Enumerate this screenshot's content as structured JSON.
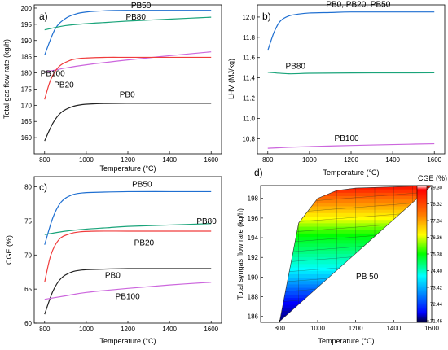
{
  "chart_data": [
    {
      "panel": "a)",
      "type": "line",
      "xlabel": "Temperature (°C)",
      "ylabel": "Total gas flow rate (kg/h)",
      "xlim": [
        750,
        1650
      ],
      "ylim": [
        155,
        201
      ],
      "xticks": [
        800,
        1000,
        1200,
        1400,
        1600
      ],
      "yticks": [
        160,
        165,
        170,
        175,
        180,
        185,
        190,
        195,
        200
      ],
      "series": [
        {
          "name": "PB50",
          "color": "#1f6fd1",
          "x": [
            800,
            850,
            900,
            950,
            1000,
            1100,
            1200,
            1400,
            1600
          ],
          "y": [
            185.5,
            193.5,
            196.8,
            198.2,
            198.8,
            199.2,
            199.3,
            199.3,
            199.3
          ]
        },
        {
          "name": "PB80",
          "color": "#1aa47a",
          "x": [
            800,
            900,
            1000,
            1100,
            1200,
            1300,
            1400,
            1500,
            1600
          ],
          "y": [
            193.3,
            194.6,
            195.2,
            195.6,
            196.0,
            196.3,
            196.6,
            196.9,
            197.2
          ]
        },
        {
          "name": "PB100",
          "color": "#cc66dd",
          "x": [
            800,
            900,
            1000,
            1200,
            1400,
            1600
          ],
          "y": [
            180.2,
            181.5,
            182.5,
            184.0,
            185.3,
            186.5
          ]
        },
        {
          "name": "PB20",
          "color": "#f03c3c",
          "x": [
            800,
            830,
            870,
            920,
            960,
            1000,
            1100,
            1200,
            1400,
            1600
          ],
          "y": [
            171.8,
            178.0,
            182.0,
            183.8,
            184.4,
            184.6,
            184.8,
            184.8,
            184.8,
            184.8
          ]
        },
        {
          "name": "PB0",
          "color": "#222222",
          "x": [
            800,
            840,
            880,
            930,
            980,
            1050,
            1200,
            1400,
            1600
          ],
          "y": [
            159.0,
            164.5,
            167.8,
            169.5,
            170.2,
            170.5,
            170.6,
            170.6,
            170.6
          ]
        }
      ],
      "labels": [
        {
          "text": "PB50",
          "x": 1215,
          "y": 200.0
        },
        {
          "text": "PB80",
          "x": 1190,
          "y": 196.5
        },
        {
          "text": "PB100",
          "x": 780,
          "y": 179.0
        },
        {
          "text": "PB20",
          "x": 845,
          "y": 175.5
        },
        {
          "text": "PB0",
          "x": 1160,
          "y": 172.5
        }
      ]
    },
    {
      "panel": "b)",
      "type": "line",
      "xlabel": "Temperature (°C)",
      "ylabel": "LHV (MJ/kg)",
      "xlim": [
        750,
        1650
      ],
      "ylim": [
        10.65,
        12.12
      ],
      "xticks": [
        800,
        1000,
        1200,
        1400,
        1600
      ],
      "yticks": [
        10.8,
        11.0,
        11.2,
        11.4,
        11.6,
        11.8,
        12.0
      ],
      "series": [
        {
          "name": "PB0, PB20, PB50",
          "color": "#1f6fd1",
          "x": [
            800,
            830,
            860,
            900,
            950,
            1000,
            1100,
            1200,
            1400,
            1600
          ],
          "y": [
            11.67,
            11.85,
            11.96,
            12.01,
            12.03,
            12.04,
            12.045,
            12.05,
            12.05,
            12.05
          ]
        },
        {
          "name": "PB80",
          "color": "#1aa47a",
          "x": [
            800,
            900,
            1000,
            1200,
            1400,
            1600
          ],
          "y": [
            11.455,
            11.44,
            11.445,
            11.448,
            11.449,
            11.45
          ]
        },
        {
          "name": "PB100",
          "color": "#cc66dd",
          "x": [
            800,
            900,
            1000,
            1200,
            1400,
            1600
          ],
          "y": [
            10.705,
            10.715,
            10.722,
            10.733,
            10.742,
            10.75
          ]
        }
      ],
      "labels": [
        {
          "text": "PB0, PB20, PB50",
          "x": 1080,
          "y": 12.1
        },
        {
          "text": "PB80",
          "x": 885,
          "y": 11.49
        },
        {
          "text": "PB100",
          "x": 1120,
          "y": 10.78
        }
      ]
    },
    {
      "panel": "c)",
      "type": "line",
      "xlabel": "Temperature (°C)",
      "ylabel": "CGE (%)",
      "xlim": [
        750,
        1650
      ],
      "ylim": [
        60,
        81.5
      ],
      "xticks": [
        800,
        1000,
        1200,
        1400,
        1600
      ],
      "yticks": [
        60,
        65,
        70,
        75,
        80
      ],
      "series": [
        {
          "name": "PB50",
          "color": "#1f6fd1",
          "x": [
            800,
            840,
            880,
            930,
            980,
            1050,
            1200,
            1400,
            1600
          ],
          "y": [
            71.5,
            75.5,
            77.8,
            78.8,
            79.1,
            79.2,
            79.3,
            79.3,
            79.3
          ]
        },
        {
          "name": "PB80",
          "color": "#1aa47a",
          "x": [
            800,
            900,
            1000,
            1100,
            1200,
            1400,
            1600
          ],
          "y": [
            73.0,
            73.5,
            73.8,
            74.0,
            74.2,
            74.4,
            74.6
          ]
        },
        {
          "name": "PB20",
          "color": "#f03c3c",
          "x": [
            800,
            830,
            870,
            920,
            970,
            1050,
            1200,
            1400,
            1600
          ],
          "y": [
            66.0,
            70.0,
            72.3,
            73.1,
            73.4,
            73.5,
            73.5,
            73.5,
            73.5
          ]
        },
        {
          "name": "PB0",
          "color": "#222222",
          "x": [
            800,
            840,
            880,
            930,
            980,
            1050,
            1200,
            1400,
            1600
          ],
          "y": [
            61.3,
            64.7,
            66.6,
            67.5,
            67.8,
            67.9,
            68.0,
            68.0,
            68.0
          ]
        },
        {
          "name": "PB100",
          "color": "#cc66dd",
          "x": [
            800,
            900,
            1000,
            1200,
            1400,
            1600
          ],
          "y": [
            63.5,
            64.0,
            64.5,
            65.1,
            65.6,
            66.0
          ]
        }
      ],
      "labels": [
        {
          "text": "PB50",
          "x": 1220,
          "y": 80.0
        },
        {
          "text": "PB80",
          "x": 1530,
          "y": 74.6
        },
        {
          "text": "PB20",
          "x": 1230,
          "y": 71.4
        },
        {
          "text": "PB0",
          "x": 1090,
          "y": 66.6
        },
        {
          "text": "PB100",
          "x": 1140,
          "y": 63.5
        }
      ]
    },
    {
      "panel": "d)",
      "type": "heatmap",
      "xlabel": "Temperature (°C)",
      "ylabel": "Total syngas flow rate (kg/h)",
      "xlim": [
        700,
        1600
      ],
      "ylim": [
        185.4,
        199.3
      ],
      "xticks": [
        800,
        1000,
        1200,
        1400,
        1600
      ],
      "yticks": [
        186,
        188,
        190,
        192,
        194,
        196,
        198
      ],
      "annotation": "PB 50",
      "annotation_pos": {
        "x": 1260,
        "y": 189.8
      },
      "region_boundary": [
        {
          "x": 800,
          "y": 185.5
        },
        {
          "x": 900,
          "y": 195.5
        },
        {
          "x": 1000,
          "y": 198.0
        },
        {
          "x": 1100,
          "y": 198.8
        },
        {
          "x": 1200,
          "y": 199.05
        },
        {
          "x": 1600,
          "y": 199.3
        }
      ],
      "colorbar": {
        "title": "CGE (%)",
        "min": 71.46,
        "max": 79.3,
        "ticks": [
          79.3,
          78.32,
          77.34,
          76.36,
          75.38,
          74.4,
          73.42,
          72.44,
          71.46
        ],
        "tick_labels": [
          "79.30",
          "78.32",
          "77.34",
          "76.36",
          "75.38",
          "74.40",
          "73.42",
          "72.44",
          "71.46"
        ],
        "colors": [
          "#ffffff",
          "#ff0000",
          "#ff8000",
          "#ffff00",
          "#00ff00",
          "#00ffff",
          "#0080ff",
          "#0000ff",
          "#000033"
        ]
      }
    }
  ]
}
